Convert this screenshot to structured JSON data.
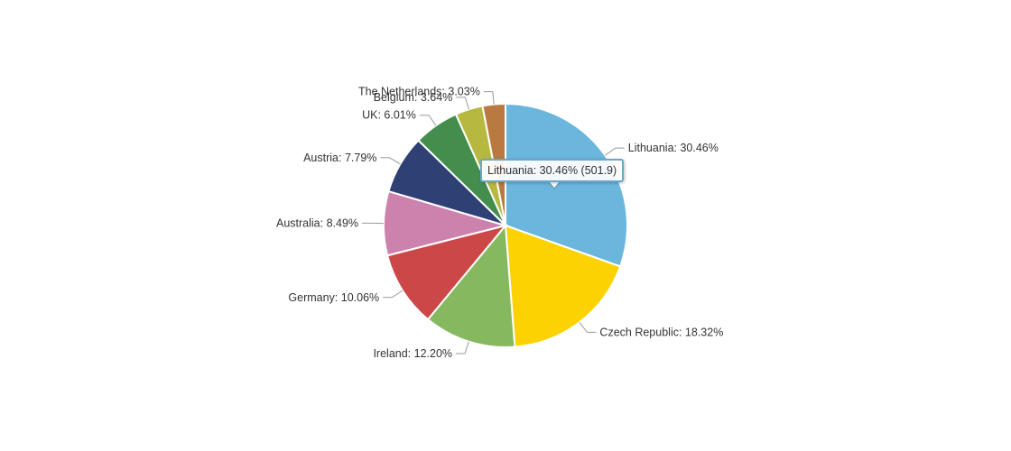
{
  "chart_data": {
    "type": "pie",
    "title": "",
    "categories": [
      "Lithuania",
      "Czech Republic",
      "Ireland",
      "Germany",
      "Australia",
      "Austria",
      "UK",
      "Belgium",
      "The Netherlands"
    ],
    "values": [
      30.46,
      18.32,
      12.2,
      10.06,
      8.49,
      7.79,
      6.01,
      3.64,
      3.03
    ],
    "labels": [
      "Lithuania: 30.46%",
      "Czech Republic: 18.32%",
      "Ireland: 12.20%",
      "Germany: 10.06%",
      "Australia: 8.49%",
      "Austria: 7.79%",
      "UK: 6.01%",
      "Belgium: 3.64%",
      "The Netherlands: 3.03%"
    ],
    "colors": [
      "#6ab6dd",
      "#fcd202",
      "#86b95f",
      "#cc4748",
      "#cd82ad",
      "#2f4074",
      "#448e4d",
      "#b7b83f",
      "#b97a42"
    ],
    "legend": "none"
  },
  "tooltip": {
    "text": "Lithuania: 30.46% (501.9)"
  }
}
